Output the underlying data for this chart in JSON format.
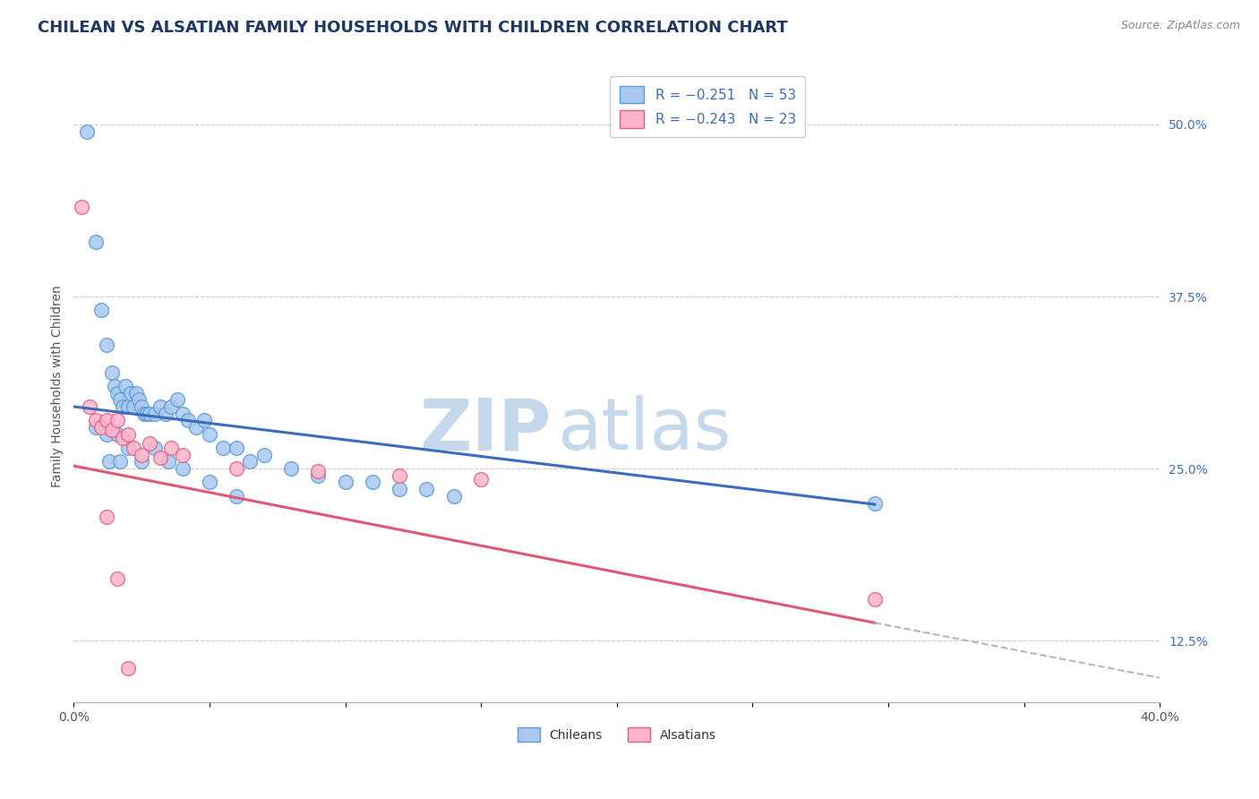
{
  "title": "CHILEAN VS ALSATIAN FAMILY HOUSEHOLDS WITH CHILDREN CORRELATION CHART",
  "source_text": "Source: ZipAtlas.com",
  "ylabel": "Family Households with Children",
  "xlim": [
    0.0,
    0.4
  ],
  "ylim": [
    0.08,
    0.54
  ],
  "y_ticks_right": [
    0.125,
    0.25,
    0.375,
    0.5
  ],
  "y_tick_labels_right": [
    "12.5%",
    "25.0%",
    "37.5%",
    "50.0%"
  ],
  "grid_color": "#cccccc",
  "background_color": "#ffffff",
  "legend_label1": "R = −0.251   N = 53",
  "legend_label2": "R = −0.243   N = 23",
  "watermark1": "ZIP",
  "watermark2": "atlas",
  "watermark_color": "#c5d8ec",
  "title_color": "#1F3864",
  "title_fontsize": 13,
  "source_color": "#888888",
  "blue_dot_face": "#a8c8f0",
  "blue_dot_edge": "#5b9bd5",
  "pink_dot_face": "#ffb3cc",
  "pink_dot_edge": "#e06080",
  "blue_line_color": "#3b6dbf",
  "pink_line_color": "#e05878",
  "dash_color": "#b0b8c8",
  "bottom_label_color": "#333333",
  "right_tick_color": "#3b6dbf",
  "chileans_x": [
    0.005,
    0.008,
    0.01,
    0.012,
    0.014,
    0.015,
    0.016,
    0.017,
    0.018,
    0.019,
    0.02,
    0.021,
    0.022,
    0.023,
    0.024,
    0.025,
    0.026,
    0.027,
    0.028,
    0.03,
    0.032,
    0.034,
    0.036,
    0.038,
    0.04,
    0.042,
    0.045,
    0.048,
    0.05,
    0.055,
    0.06,
    0.065,
    0.07,
    0.08,
    0.09,
    0.1,
    0.11,
    0.12,
    0.13,
    0.14,
    0.008,
    0.012,
    0.016,
    0.02,
    0.025,
    0.03,
    0.035,
    0.04,
    0.05,
    0.06,
    0.013,
    0.017,
    0.295
  ],
  "chileans_y": [
    0.495,
    0.415,
    0.365,
    0.34,
    0.32,
    0.31,
    0.305,
    0.3,
    0.295,
    0.31,
    0.295,
    0.305,
    0.295,
    0.305,
    0.3,
    0.295,
    0.29,
    0.29,
    0.29,
    0.29,
    0.295,
    0.29,
    0.295,
    0.3,
    0.29,
    0.285,
    0.28,
    0.285,
    0.275,
    0.265,
    0.265,
    0.255,
    0.26,
    0.25,
    0.245,
    0.24,
    0.24,
    0.235,
    0.235,
    0.23,
    0.28,
    0.275,
    0.275,
    0.265,
    0.255,
    0.265,
    0.255,
    0.25,
    0.24,
    0.23,
    0.255,
    0.255,
    0.225
  ],
  "alsatians_x": [
    0.003,
    0.006,
    0.008,
    0.01,
    0.012,
    0.014,
    0.016,
    0.018,
    0.02,
    0.022,
    0.025,
    0.028,
    0.032,
    0.036,
    0.04,
    0.06,
    0.09,
    0.12,
    0.15,
    0.295,
    0.012,
    0.016,
    0.02
  ],
  "alsatians_y": [
    0.44,
    0.295,
    0.285,
    0.28,
    0.285,
    0.278,
    0.285,
    0.272,
    0.275,
    0.265,
    0.26,
    0.268,
    0.258,
    0.265,
    0.26,
    0.25,
    0.248,
    0.245,
    0.242,
    0.155,
    0.215,
    0.17,
    0.105
  ],
  "blue_line_x0": 0.0,
  "blue_line_x1": 0.295,
  "blue_line_y0": 0.295,
  "blue_line_y1": 0.224,
  "pink_line_x0": 0.0,
  "pink_line_x1": 0.295,
  "pink_line_y0": 0.252,
  "pink_line_y1": 0.138,
  "dash_line_x0": 0.295,
  "dash_line_x1": 0.4,
  "dash_line_y0": 0.138,
  "dash_line_y1": 0.098
}
